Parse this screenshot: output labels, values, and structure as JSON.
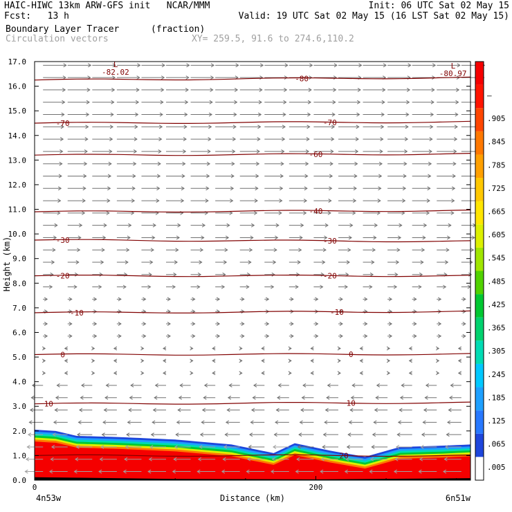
{
  "header": {
    "line1_left": "HAIC-HIWC 13km ARW-GFS init   NCAR/MMM",
    "line1_right": "Init: 06 UTC Sat 02 May 15",
    "line2_left": "Fcst:   13 h",
    "line2_right": "Valid: 19 UTC Sat 02 May 15 (16 LST Sat 02 May 15)",
    "line3_left": "Boundary Layer Tracer",
    "line3_units": "(fraction)",
    "line4_left": "Circulation vectors",
    "line4_xy": "XY= 259.5, 91.6 to 274.6,110.2"
  },
  "chart_data": {
    "type": "heatmap",
    "title": "Boundary Layer Tracer",
    "units": "(fraction)",
    "xlabel": "Distance (km)",
    "ylabel": "Height (km)",
    "xlim": [
      0,
      310
    ],
    "ylim": [
      0,
      17
    ],
    "x_ticks": [
      0,
      200
    ],
    "x_end_labels": [
      "4n53w",
      "6n51w"
    ],
    "y_ticks": [
      "0.0",
      "1.0",
      "2.0",
      "3.0",
      "4.0",
      "5.0",
      "6.0",
      "7.0",
      "8.0",
      "9.0",
      "10.0",
      "11.0",
      "12.0",
      "13.0",
      "14.0",
      "15.0",
      "16.0",
      "17.0"
    ],
    "colorbar": {
      "labels": [
        ".005",
        ".065",
        ".125",
        ".185",
        ".245",
        ".305",
        ".365",
        ".425",
        ".485",
        ".545",
        ".605",
        ".665",
        ".725",
        ".785",
        ".845",
        ".905",
        "–"
      ],
      "colors": [
        "#ffffff",
        "#1e46dc",
        "#2878ff",
        "#1ea0ff",
        "#00c8ff",
        "#00dcb4",
        "#00d26e",
        "#00c832",
        "#50d200",
        "#a0e600",
        "#dcf000",
        "#ffe600",
        "#ffc800",
        "#ffa000",
        "#ff7800",
        "#ff4600",
        "#ff1400",
        "#f50000"
      ]
    },
    "boundary_layer_top_km": [
      [
        0,
        2.05
      ],
      [
        15,
        2.0
      ],
      [
        30,
        1.8
      ],
      [
        60,
        1.75
      ],
      [
        100,
        1.65
      ],
      [
        140,
        1.45
      ],
      [
        170,
        1.1
      ],
      [
        185,
        1.5
      ],
      [
        210,
        1.2
      ],
      [
        235,
        0.95
      ],
      [
        260,
        1.35
      ],
      [
        290,
        1.4
      ],
      [
        310,
        1.45
      ]
    ],
    "temperature_contours_C": [
      {
        "value": -80,
        "label": "-80",
        "label_x": [
          190
        ],
        "y0": 16.25,
        "y1": 16.35
      },
      {
        "value": -70,
        "label": "-70",
        "label_x": [
          20,
          210
        ],
        "y0": 14.5,
        "y1": 14.55
      },
      {
        "value": -60,
        "label": "-60",
        "label_x": [
          200
        ],
        "y0": 13.2,
        "y1": 13.25
      },
      {
        "value": -40,
        "label": "-40",
        "label_x": [
          200
        ],
        "y0": 10.9,
        "y1": 10.95
      },
      {
        "value": -30,
        "label": "-30",
        "label_x": [
          20,
          210
        ],
        "y0": 9.75,
        "y1": 9.7
      },
      {
        "value": -20,
        "label": "-20",
        "label_x": [
          20,
          210
        ],
        "y0": 8.3,
        "y1": 8.3
      },
      {
        "value": -10,
        "label": "-10",
        "label_x": [
          30,
          215
        ],
        "y0": 6.8,
        "y1": 6.85
      },
      {
        "value": 0,
        "label": "0",
        "label_x": [
          20,
          225
        ],
        "y0": 5.1,
        "y1": 5.12
      },
      {
        "value": 10,
        "label": "10",
        "label_x": [
          10,
          225
        ],
        "y0": 3.1,
        "y1": 3.15
      },
      {
        "value": 20,
        "label": "20",
        "label_x": [
          220
        ],
        "y0": 1.0,
        "y1": 1.0
      }
    ],
    "minimum_markers": [
      {
        "label": "L",
        "value": "-82.02",
        "x": 60,
        "y": 17.0
      },
      {
        "label": "L",
        "value": "-80.97",
        "x": 300,
        "y": 16.95
      }
    ]
  }
}
